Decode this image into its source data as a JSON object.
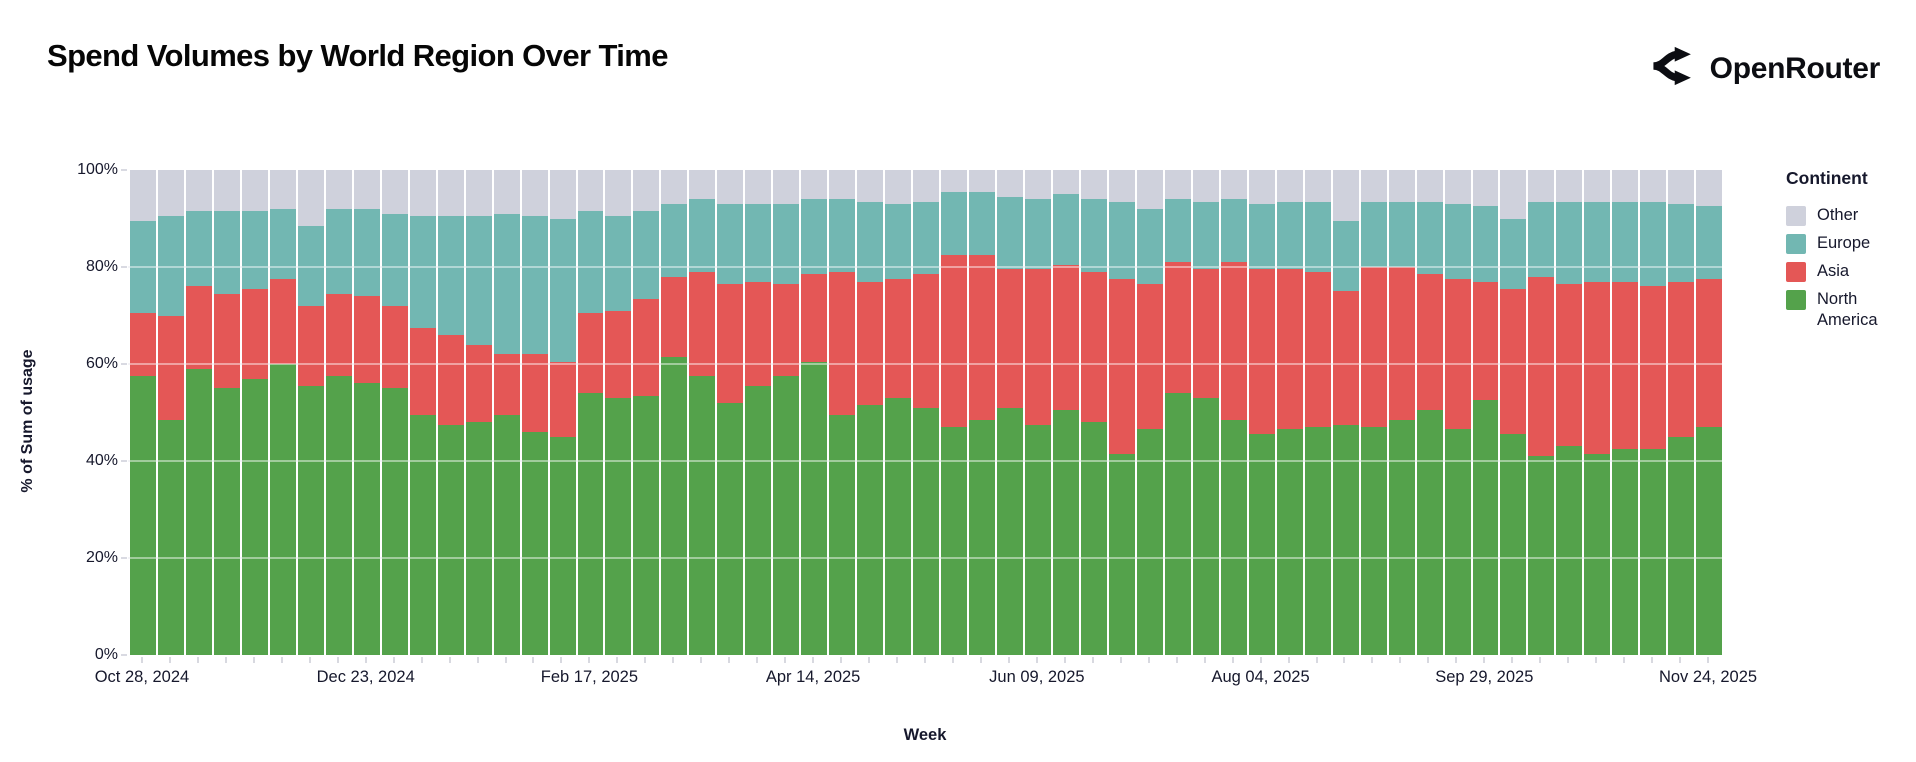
{
  "header": {
    "title": "Spend Volumes by World Region Over Time",
    "brand": "OpenRouter"
  },
  "chart_data": {
    "type": "bar",
    "subtype": "stacked-percent",
    "title": "Spend Volumes by World Region Over Time",
    "xlabel": "Week",
    "ylabel": "% of Sum of usage",
    "ylim": [
      0,
      100
    ],
    "grid": true,
    "y_ticks": [
      {
        "value": 0,
        "label": "0%"
      },
      {
        "value": 20,
        "label": "20%"
      },
      {
        "value": 40,
        "label": "40%"
      },
      {
        "value": 60,
        "label": "60%"
      },
      {
        "value": 80,
        "label": "80%"
      },
      {
        "value": 100,
        "label": "100%"
      }
    ],
    "x_axis_visible_ticks": [
      {
        "bar_index": 0,
        "label": "Oct 28, 2024"
      },
      {
        "bar_index": 8,
        "label": "Dec 23, 2024"
      },
      {
        "bar_index": 16,
        "label": "Feb 17, 2025"
      },
      {
        "bar_index": 24,
        "label": "Apr 14, 2025"
      },
      {
        "bar_index": 32,
        "label": "Jun 09, 2025"
      },
      {
        "bar_index": 40,
        "label": "Aug 04, 2025"
      },
      {
        "bar_index": 48,
        "label": "Sep 29, 2025"
      },
      {
        "bar_index": 56,
        "label": "Nov 24, 2025"
      }
    ],
    "legend": {
      "title": "Continent",
      "position": "right",
      "items": [
        {
          "label": "Other",
          "color": "#cfd1dc"
        },
        {
          "label": "Europe",
          "color": "#72b7b2"
        },
        {
          "label": "Asia",
          "color": "#e45756"
        },
        {
          "label": "North America",
          "color": "#54a24b"
        }
      ]
    },
    "stack_order_bottom_to_top": [
      "North America",
      "Asia",
      "Europe",
      "Other"
    ],
    "series_keys": [
      "north_america",
      "asia",
      "europe",
      "other"
    ],
    "colors": {
      "north_america": "#54a24b",
      "asia": "#e45756",
      "europe": "#72b7b2",
      "other": "#cfd1dc"
    },
    "columns": [
      "week",
      "north_america",
      "asia",
      "europe",
      "other"
    ],
    "weeks": [
      [
        "Oct 28, 2024",
        57.5,
        13,
        19,
        10.5
      ],
      [
        "Nov 04, 2024",
        48.5,
        21.5,
        20.5,
        9.5
      ],
      [
        "Nov 11, 2024",
        59,
        17,
        15.5,
        8.5
      ],
      [
        "Nov 18, 2024",
        55,
        19.5,
        17,
        8.5
      ],
      [
        "Nov 25, 2024",
        57,
        18.5,
        16,
        8.5
      ],
      [
        "Dec 02, 2024",
        60,
        17.5,
        14.5,
        8
      ],
      [
        "Dec 09, 2024",
        55.5,
        16.5,
        16.5,
        11.5
      ],
      [
        "Dec 16, 2024",
        57.5,
        17,
        17.5,
        8
      ],
      [
        "Dec 23, 2024",
        56,
        18,
        18,
        8
      ],
      [
        "Dec 30, 2024",
        55,
        17,
        19,
        9
      ],
      [
        "Jan 06, 2025",
        49.5,
        18,
        23,
        9.5
      ],
      [
        "Jan 13, 2025",
        47.5,
        18.5,
        24.5,
        9.5
      ],
      [
        "Jan 20, 2025",
        48,
        16,
        26.5,
        9.5
      ],
      [
        "Jan 27, 2025",
        49.5,
        12.5,
        29,
        9
      ],
      [
        "Feb 03, 2025",
        46,
        16,
        28.5,
        9.5
      ],
      [
        "Feb 10, 2025",
        45,
        15.5,
        29.5,
        10
      ],
      [
        "Feb 17, 2025",
        54,
        16.5,
        21,
        8.5
      ],
      [
        "Feb 24, 2025",
        53,
        18,
        19.5,
        9.5
      ],
      [
        "Mar 03, 2025",
        53.5,
        20,
        18,
        8.5
      ],
      [
        "Mar 10, 2025",
        61.5,
        16.5,
        15,
        7
      ],
      [
        "Mar 17, 2025",
        57.5,
        21.5,
        15,
        6
      ],
      [
        "Mar 24, 2025",
        52,
        24.5,
        16.5,
        7
      ],
      [
        "Mar 31, 2025",
        55.5,
        21.5,
        16,
        7
      ],
      [
        "Apr 07, 2025",
        57.5,
        19,
        16.5,
        7
      ],
      [
        "Apr 14, 2025",
        60.5,
        18,
        15.5,
        6
      ],
      [
        "Apr 21, 2025",
        49.5,
        29.5,
        15,
        6
      ],
      [
        "Apr 28, 2025",
        51.5,
        25.5,
        16.5,
        6.5
      ],
      [
        "May 05, 2025",
        53,
        24.5,
        15.5,
        7
      ],
      [
        "May 12, 2025",
        51,
        27.5,
        15,
        6.5
      ],
      [
        "May 19, 2025",
        47,
        35.5,
        13,
        4.5
      ],
      [
        "May 26, 2025",
        48.5,
        34,
        13,
        4.5
      ],
      [
        "Jun 02, 2025",
        51,
        28.5,
        15,
        5.5
      ],
      [
        "Jun 09, 2025",
        47.5,
        32,
        14.5,
        6
      ],
      [
        "Jun 16, 2025",
        50.5,
        30,
        14.5,
        5
      ],
      [
        "Jun 23, 2025",
        48,
        31,
        15,
        6
      ],
      [
        "Jun 30, 2025",
        41.5,
        36,
        16,
        6.5
      ],
      [
        "Jul 07, 2025",
        46.5,
        30,
        15.5,
        8
      ],
      [
        "Jul 14, 2025",
        54,
        27,
        13,
        6
      ],
      [
        "Jul 21, 2025",
        53,
        26.5,
        14,
        6.5
      ],
      [
        "Jul 28, 2025",
        48.5,
        32.5,
        13,
        6
      ],
      [
        "Aug 04, 2025",
        45.5,
        34,
        13.5,
        7
      ],
      [
        "Aug 11, 2025",
        46.5,
        33,
        14,
        6.5
      ],
      [
        "Aug 18, 2025",
        47,
        32,
        14.5,
        6.5
      ],
      [
        "Aug 25, 2025",
        47.5,
        27.5,
        14.5,
        10.5
      ],
      [
        "Sep 01, 2025",
        47,
        33,
        13.5,
        6.5
      ],
      [
        "Sep 08, 2025",
        48.5,
        31.5,
        13.5,
        6.5
      ],
      [
        "Sep 15, 2025",
        50.5,
        28,
        15,
        6.5
      ],
      [
        "Sep 22, 2025",
        46.5,
        31,
        15.5,
        7
      ],
      [
        "Sep 29, 2025",
        52.5,
        24.5,
        15.5,
        7.5
      ],
      [
        "Oct 06, 2025",
        45.5,
        30,
        14.5,
        10
      ],
      [
        "Oct 13, 2025",
        41,
        37,
        15.5,
        6.5
      ],
      [
        "Oct 20, 2025",
        43,
        33.5,
        17,
        6.5
      ],
      [
        "Oct 27, 2025",
        41.5,
        35.5,
        16.5,
        6.5
      ],
      [
        "Nov 03, 2025",
        42.5,
        34.5,
        16.5,
        6.5
      ],
      [
        "Nov 10, 2025",
        42.5,
        33.5,
        17.5,
        6.5
      ],
      [
        "Nov 17, 2025",
        45,
        32,
        16,
        7
      ],
      [
        "Nov 24, 2025",
        47,
        30.5,
        15,
        7.5
      ]
    ]
  }
}
